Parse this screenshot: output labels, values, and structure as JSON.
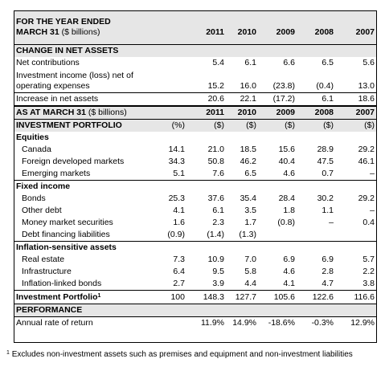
{
  "header": {
    "title_line1": "FOR THE YEAR ENDED",
    "title_line2": "MARCH 31",
    "title_unit": "($ billions)",
    "years": [
      "2011",
      "2010",
      "2009",
      "2008",
      "2007"
    ]
  },
  "net_assets": {
    "section": "CHANGE IN NET ASSETS",
    "rows": [
      {
        "label": "Net contributions",
        "values": [
          "5.4",
          "6.1",
          "6.6",
          "6.5",
          "5.6"
        ]
      },
      {
        "label": "Investment income (loss) net of operating expenses",
        "values": [
          "15.2",
          "16.0",
          "(23.8)",
          "(0.4)",
          "13.0"
        ]
      },
      {
        "label": "Increase in net assets",
        "values": [
          "20.6",
          "22.1",
          "(17.2)",
          "6.1",
          "18.6"
        ]
      }
    ]
  },
  "as_at": {
    "label": "AS AT MARCH 31",
    "unit": "($ billions)",
    "years": [
      "2011",
      "2010",
      "2009",
      "2008",
      "2007"
    ]
  },
  "portfolio": {
    "section": "INVESTMENT PORTFOLIO",
    "units": [
      "(%)",
      "($)",
      "($)",
      "($)",
      "($)",
      "($)"
    ],
    "groups": [
      {
        "name": "Equities",
        "rows": [
          {
            "label": "Canada",
            "values": [
              "14.1",
              "21.0",
              "18.5",
              "15.6",
              "28.9",
              "29.2"
            ]
          },
          {
            "label": "Foreign developed markets",
            "values": [
              "34.3",
              "50.8",
              "46.2",
              "40.4",
              "47.5",
              "46.1"
            ]
          },
          {
            "label": "Emerging markets",
            "values": [
              "5.1",
              "7.6",
              "6.5",
              "4.6",
              "0.7",
              "–"
            ]
          }
        ]
      },
      {
        "name": "Fixed income",
        "rows": [
          {
            "label": "Bonds",
            "values": [
              "25.3",
              "37.6",
              "35.4",
              "28.4",
              "30.2",
              "29.2"
            ]
          },
          {
            "label": "Other debt",
            "values": [
              "4.1",
              "6.1",
              "3.5",
              "1.8",
              "1.1",
              "–"
            ]
          },
          {
            "label": "Money market securities",
            "values": [
              "1.6",
              "2.3",
              "1.7",
              "(0.8)",
              "–",
              "0.4"
            ]
          },
          {
            "label": "Debt financing liabilities",
            "values": [
              "(0.9)",
              "(1.4)",
              "(1.3)",
              "",
              "",
              ""
            ]
          }
        ]
      },
      {
        "name": "Inflation-sensitive assets",
        "rows": [
          {
            "label": "Real estate",
            "values": [
              "7.3",
              "10.9",
              "7.0",
              "6.9",
              "6.9",
              "5.7"
            ]
          },
          {
            "label": "Infrastructure",
            "values": [
              "6.4",
              "9.5",
              "5.8",
              "4.6",
              "2.8",
              "2.2"
            ]
          },
          {
            "label": "Inflation-linked bonds",
            "values": [
              "2.7",
              "3.9",
              "4.4",
              "4.1",
              "4.7",
              "3.8"
            ]
          }
        ]
      }
    ],
    "total": {
      "label": "Investment Portfolio",
      "sup": "1",
      "values": [
        "100",
        "148.3",
        "127.7",
        "105.6",
        "122.6",
        "116.6"
      ]
    }
  },
  "performance": {
    "section": "PERFORMANCE",
    "row": {
      "label": "Annual rate of return",
      "values": [
        "11.9%",
        "14.9%",
        "-18.6%",
        "-0.3%",
        "12.9%"
      ]
    }
  },
  "footnote": {
    "sup": "1",
    "text": "Excludes non-investment assets such as premises and equipment and non-investment liabilities"
  }
}
